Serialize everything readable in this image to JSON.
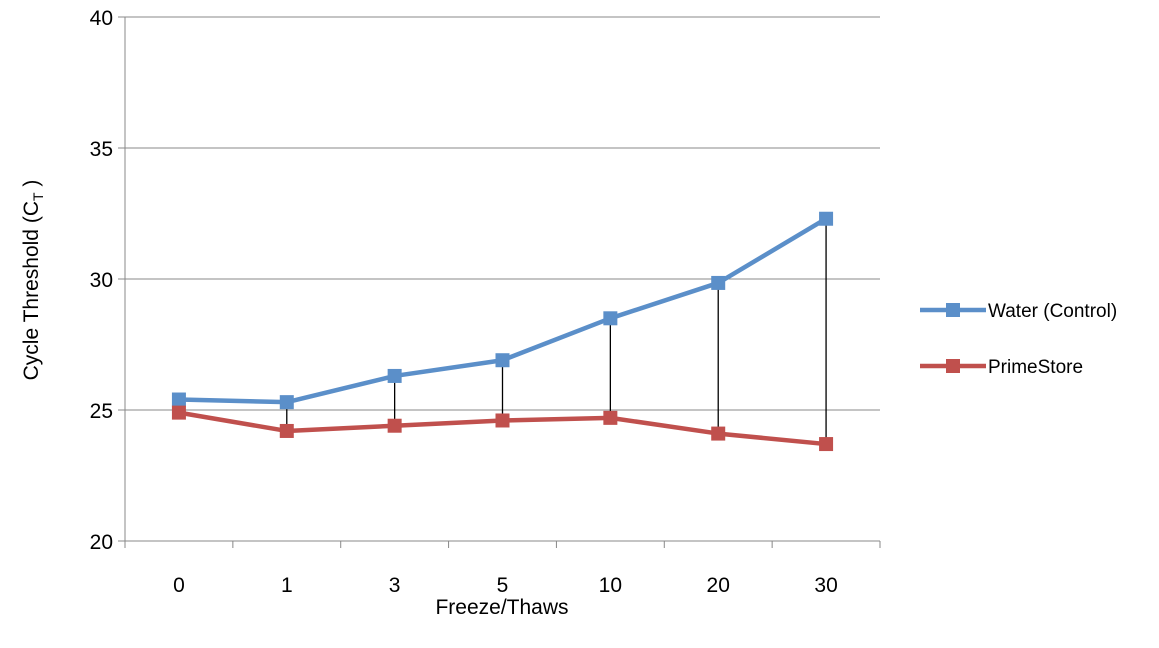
{
  "chart_data": {
    "type": "line",
    "categories": [
      "0",
      "1",
      "3",
      "5",
      "10",
      "20",
      "30"
    ],
    "series": [
      {
        "name": "Water (Control)",
        "color": "#5B8FC9",
        "values": [
          25.4,
          25.3,
          26.3,
          26.9,
          28.5,
          29.85,
          32.3
        ]
      },
      {
        "name": "PrimeStore",
        "color": "#C0504D",
        "values": [
          24.9,
          24.2,
          24.4,
          24.6,
          24.7,
          24.1,
          23.7
        ]
      }
    ],
    "xlabel": "Freeze/Thaws",
    "ylabel_main": "Cycle Threshold (C",
    "ylabel_sub": "T",
    "ylabel_end": " )",
    "ylim": [
      20,
      40
    ],
    "yticks": [
      "20",
      "25",
      "30",
      "35",
      "40"
    ],
    "grid": true,
    "legend_position": "right",
    "drop_lines": true
  }
}
